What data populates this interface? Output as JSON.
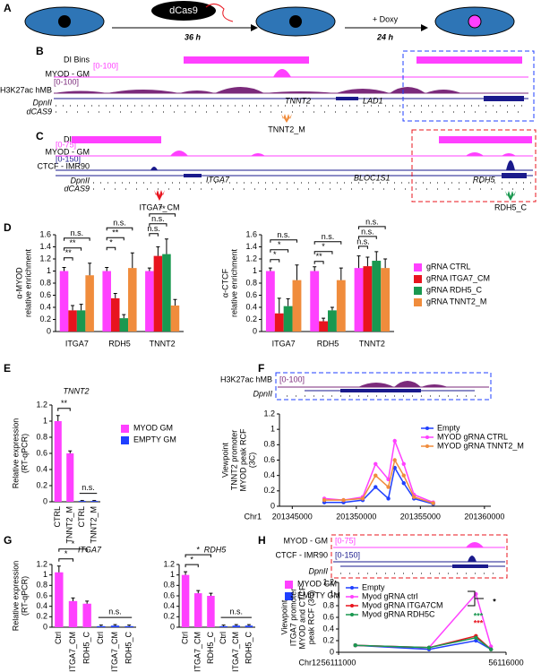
{
  "panel_labels": [
    "A",
    "B",
    "C",
    "D",
    "E",
    "F",
    "G",
    "H"
  ],
  "schematic": {
    "protein": "dCas9",
    "time1": "36 h",
    "treatment": "+ Doxy",
    "time2": "24 h"
  },
  "tracks_B": {
    "rows": [
      "DI Bins",
      "MYOD - GM",
      "H3K27ac hMB",
      "DpnII",
      "dCAS9"
    ],
    "ranges": [
      "[0-100]",
      "[0-100]"
    ],
    "genes": [
      "TNNT2",
      "LAD1"
    ],
    "guide": "TNNT2_M"
  },
  "tracks_C": {
    "rows": [
      "DI Bins",
      "MYOD - GM",
      "CTCF - IMR90",
      "DpnII",
      "dCAS9"
    ],
    "ranges": [
      "[0-75]",
      "[0-150]"
    ],
    "genes": [
      "ITGA7",
      "BLOC1S1",
      "RDH5"
    ],
    "guides": [
      "ITGA7_CM",
      "RDH5_C"
    ]
  },
  "tracks_F": {
    "rows": [
      "H3K27ac hMB",
      "DpnII"
    ],
    "ranges": [
      "[0-100]"
    ]
  },
  "tracks_H": {
    "rows": [
      "MYOD - GM",
      "CTCF - IMR90",
      "DpnII"
    ],
    "ranges": [
      "[0-75]",
      "[0-150]"
    ]
  },
  "chart_data": [
    {
      "type": "bar",
      "ylabel": [
        "α-MYOD",
        "relative enrichment"
      ],
      "categories": [
        "ITGA7",
        "RDH5",
        "TNNT2"
      ],
      "series": [
        {
          "color": "#ff40ff",
          "values": [
            1.0,
            1.0,
            1.0
          ],
          "errors": [
            0.06,
            0.06,
            0.05
          ]
        },
        {
          "color": "#e8141e",
          "values": [
            0.35,
            0.55,
            1.25
          ],
          "errors": [
            0.08,
            0.08,
            0.15
          ]
        },
        {
          "color": "#1a9850",
          "values": [
            0.35,
            0.22,
            1.28
          ],
          "errors": [
            0.1,
            0.06,
            0.25
          ]
        },
        {
          "color": "#f08c3c",
          "values": [
            0.93,
            1.05,
            0.43
          ],
          "errors": [
            0.2,
            0.25,
            0.1
          ]
        }
      ],
      "ylim": [
        0,
        1.6
      ],
      "yticks": [
        0,
        0.2,
        0.4,
        0.6,
        0.8,
        1,
        1.2,
        1.4,
        1.6
      ],
      "annotations": [
        [
          "**",
          "**",
          "n.s."
        ],
        [
          "*",
          "**",
          "n.s."
        ],
        [
          "n.s.",
          "n.s.",
          "**"
        ]
      ]
    },
    {
      "type": "bar",
      "ylabel": [
        "α-CTCF",
        "relative enrichment"
      ],
      "categories": [
        "ITGA7",
        "RDH5",
        "TNNT2"
      ],
      "series": [
        {
          "name": "gRNA CTRL",
          "color": "#ff40ff",
          "values": [
            1.0,
            1.0,
            1.05
          ],
          "errors": [
            0.05,
            0.07,
            0.2
          ]
        },
        {
          "name": "gRNA ITGA7_CM",
          "color": "#e8141e",
          "values": [
            0.3,
            0.17,
            1.08
          ],
          "errors": [
            0.25,
            0.05,
            0.15
          ]
        },
        {
          "name": "gRNA RDH5_C",
          "color": "#1a9850",
          "values": [
            0.42,
            0.35,
            1.17
          ],
          "errors": [
            0.12,
            0.05,
            0.15
          ]
        },
        {
          "name": "gRNA TNNT2_M",
          "color": "#f08c3c",
          "values": [
            0.85,
            0.85,
            1.05
          ],
          "errors": [
            0.25,
            0.2,
            0.15
          ]
        }
      ],
      "ylim": [
        0,
        1.6
      ],
      "yticks": [
        0,
        0.2,
        0.4,
        0.6,
        0.8,
        1,
        1.2,
        1.4,
        1.6
      ],
      "annotations": [
        [
          "*",
          "*",
          "n.s."
        ],
        [
          "**",
          "*",
          "n.s."
        ],
        [
          "n.s.",
          "n.s.",
          "n.s."
        ]
      ]
    },
    {
      "type": "bar",
      "title": "TNNT2",
      "ylabel": [
        "Relative expression",
        "(RT-qPCR)"
      ],
      "categories": [
        "CTRL",
        "TNNT2_M",
        "CTRL",
        "TNNT2_M"
      ],
      "values": [
        1.0,
        0.6,
        0.01,
        0.01
      ],
      "errors": [
        0.07,
        0.03,
        0.005,
        0.005
      ],
      "colors": [
        "#ff40ff",
        "#ff40ff",
        "#1f3fff",
        "#1f3fff"
      ],
      "legend": [
        {
          "name": "MYOD GM",
          "color": "#ff40ff"
        },
        {
          "name": "EMPTY GM",
          "color": "#1f3fff"
        }
      ],
      "ylim": [
        0,
        1.2
      ],
      "yticks": [
        0,
        0.2,
        0.4,
        0.6,
        0.8,
        1,
        1.2
      ],
      "annotations": [
        "**",
        "n.s."
      ]
    },
    {
      "type": "line",
      "xlabel": "Chr1",
      "ylabel": [
        "Viewpoint",
        "TNNT2 promoter",
        "MYOD peak RCF",
        "(3C)"
      ],
      "x": [
        201347500,
        201349000,
        201350500,
        201351500,
        201352500,
        201353000,
        201353700,
        201354500,
        201356000
      ],
      "series": [
        {
          "name": "Empty",
          "color": "#1f3fff",
          "values": [
            0.05,
            0.05,
            0.08,
            0.25,
            0.1,
            0.5,
            0.3,
            0.1,
            0.03
          ]
        },
        {
          "name": "MYOD gRNA CTRL",
          "color": "#ff40ff",
          "values": [
            0.1,
            0.08,
            0.12,
            0.55,
            0.35,
            0.85,
            0.55,
            0.15,
            0.05
          ]
        },
        {
          "name": "MYOD gRNA TNNT2_M",
          "color": "#f08c3c",
          "values": [
            0.08,
            0.08,
            0.1,
            0.4,
            0.25,
            0.6,
            0.4,
            0.12,
            0.04
          ]
        }
      ],
      "xlim": [
        201344000,
        201360500
      ],
      "xticks": [
        201345000,
        201350000,
        201355000,
        201360000
      ],
      "ylim": [
        0,
        1.2
      ],
      "yticks": [
        0,
        0.2,
        0.4,
        0.6,
        0.8,
        1,
        1.2
      ]
    },
    {
      "type": "bar",
      "title": "ITGA7",
      "ylabel": [
        "Relative expression",
        "(RT-qPCR)"
      ],
      "categories": [
        "Ctrl",
        "ITGA7_CM",
        "RDH5_C",
        "Ctrl",
        "ITGA7_CM",
        "RDH5_C"
      ],
      "values": [
        1.05,
        0.5,
        0.45,
        0.02,
        0.03,
        0.02
      ],
      "errors": [
        0.12,
        0.06,
        0.05,
        0.02,
        0.02,
        0.02
      ],
      "colors": [
        "#ff40ff",
        "#ff40ff",
        "#ff40ff",
        "#1f3fff",
        "#1f3fff",
        "#1f3fff"
      ],
      "ylim": [
        0,
        1.2
      ],
      "yticks": [
        0,
        0.2,
        0.4,
        0.6,
        0.8,
        1,
        1.2
      ],
      "annotations": [
        "*",
        "*",
        "n.s."
      ]
    },
    {
      "type": "bar",
      "title": "RDH5",
      "categories": [
        "Ctrl",
        "ITGA7_CM",
        "RDH5_C",
        "Ctrl",
        "ITGA7_CM",
        "RDH5_C"
      ],
      "values": [
        1.0,
        0.65,
        0.6,
        0.02,
        0.03,
        0.03
      ],
      "errors": [
        0.06,
        0.05,
        0.05,
        0.02,
        0.02,
        0.02
      ],
      "colors": [
        "#ff40ff",
        "#ff40ff",
        "#ff40ff",
        "#1f3fff",
        "#1f3fff",
        "#1f3fff"
      ],
      "legend": [
        {
          "name": "MYOD GM",
          "color": "#ff40ff"
        },
        {
          "name": "EMPTY GM",
          "color": "#1f3fff"
        }
      ],
      "ylim": [
        0,
        1.2
      ],
      "yticks": [
        0,
        0.2,
        0.4,
        0.6,
        0.8,
        1,
        1.2
      ],
      "annotations": [
        "*",
        "*",
        "n.s."
      ]
    },
    {
      "type": "line",
      "xlabel": "Chr12",
      "ylabel": [
        "Viewpoint",
        "ITGA7 promoter",
        "MYOD and CTCF",
        "peak RCF (3C)"
      ],
      "x": [
        56111500,
        56113700,
        56115100,
        56115550
      ],
      "series": [
        {
          "name": "Empty",
          "color": "#1f3fff",
          "values": [
            0.12,
            0.05,
            0.2,
            0.05
          ]
        },
        {
          "name": "Myod gRNA ctrl",
          "color": "#ff40ff",
          "values": [
            0.12,
            0.08,
            1.0,
            0.1
          ]
        },
        {
          "name": "Myod gRNA ITGA7CM",
          "color": "#e8141e",
          "values": [
            0.12,
            0.08,
            0.28,
            0.05
          ]
        },
        {
          "name": "Myod gRNA RDH5C",
          "color": "#1a9850",
          "values": [
            0.12,
            0.08,
            0.25,
            0.05
          ]
        }
      ],
      "xlim": [
        56111000,
        56116000
      ],
      "xticks": [
        56111000,
        56116000
      ],
      "ylim": [
        0,
        1.2
      ],
      "yticks": [
        0,
        0.2,
        0.4,
        0.6,
        0.8,
        1,
        1.2
      ],
      "annotations": [
        "*",
        "***",
        "***"
      ]
    }
  ]
}
